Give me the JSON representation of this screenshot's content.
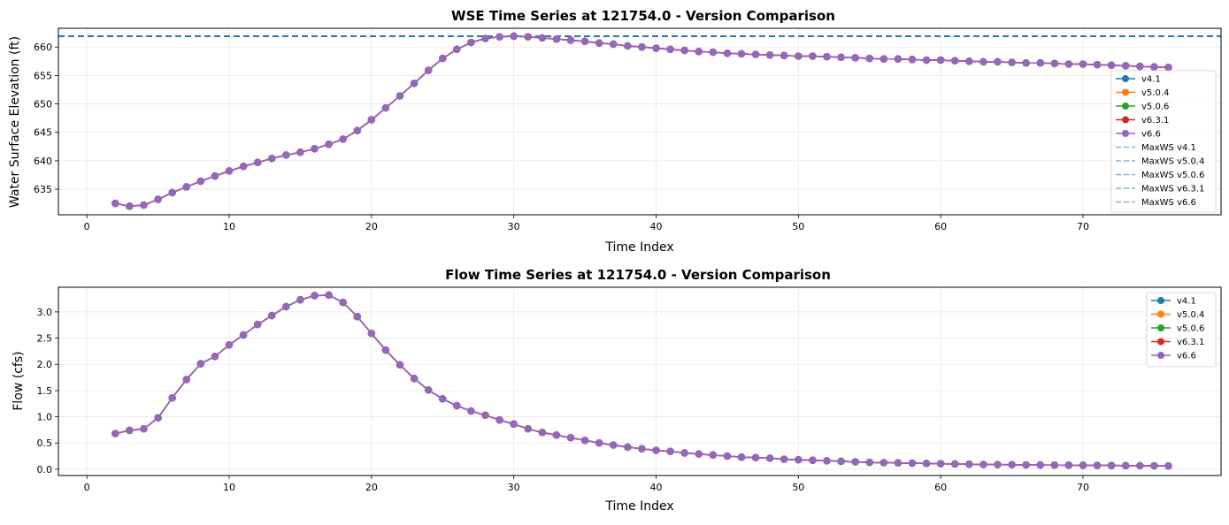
{
  "chart_data": [
    {
      "type": "line",
      "title": "WSE Time Series at 121754.0 - Version Comparison",
      "xlabel": "Time Index",
      "ylabel": "Water Surface Elevation (ft)",
      "xlim": [
        -2,
        79.7
      ],
      "ylim": [
        630.5,
        663.3
      ],
      "xticks": [
        0,
        10,
        20,
        30,
        40,
        50,
        60,
        70
      ],
      "yticks": [
        635,
        640,
        645,
        650,
        655,
        660
      ],
      "grid": true,
      "legend_position": "right",
      "x": [
        2,
        3,
        4,
        5,
        6,
        7,
        8,
        9,
        10,
        11,
        12,
        13,
        14,
        15,
        16,
        17,
        18,
        19,
        20,
        21,
        22,
        23,
        24,
        25,
        26,
        27,
        28,
        29,
        30,
        31,
        32,
        33,
        34,
        35,
        36,
        37,
        38,
        39,
        40,
        41,
        42,
        43,
        44,
        45,
        46,
        47,
        48,
        49,
        50,
        51,
        52,
        53,
        54,
        55,
        56,
        57,
        58,
        59,
        60,
        61,
        62,
        63,
        64,
        65,
        66,
        67,
        68,
        69,
        70,
        71,
        72,
        73,
        74,
        75,
        76
      ],
      "series": [
        {
          "name": "v4.1",
          "color": "#1f77b4"
        },
        {
          "name": "v5.0.4",
          "color": "#ff7f0e"
        },
        {
          "name": "v5.0.6",
          "color": "#2ca02c"
        },
        {
          "name": "v6.3.1",
          "color": "#d62728"
        },
        {
          "name": "v6.6",
          "color": "#9467bd"
        }
      ],
      "values": [
        632.5,
        632.0,
        632.2,
        633.2,
        634.4,
        635.4,
        636.4,
        637.3,
        638.2,
        639.0,
        639.7,
        640.4,
        641.0,
        641.5,
        642.1,
        642.9,
        643.8,
        645.3,
        647.2,
        649.3,
        651.4,
        653.6,
        655.9,
        658.0,
        659.6,
        660.8,
        661.5,
        661.8,
        661.9,
        661.8,
        661.6,
        661.4,
        661.2,
        661.0,
        660.7,
        660.5,
        660.2,
        660.0,
        659.8,
        659.6,
        659.4,
        659.2,
        659.1,
        658.9,
        658.8,
        658.7,
        658.6,
        658.5,
        658.4,
        658.4,
        658.3,
        658.2,
        658.1,
        658.0,
        657.9,
        657.9,
        657.8,
        657.7,
        657.7,
        657.6,
        657.5,
        657.4,
        657.4,
        657.3,
        657.2,
        657.2,
        657.1,
        657.0,
        657.0,
        656.9,
        656.8,
        656.7,
        656.6,
        656.5,
        656.4
      ],
      "reference_lines": [
        {
          "name": "MaxWS v4.1",
          "y": 661.9
        },
        {
          "name": "MaxWS v5.0.4",
          "y": 661.9
        },
        {
          "name": "MaxWS v5.0.6",
          "y": 661.9
        },
        {
          "name": "MaxWS v6.3.1",
          "y": 661.9
        },
        {
          "name": "MaxWS v6.6",
          "y": 661.9
        }
      ]
    },
    {
      "type": "line",
      "title": "Flow Time Series at 121754.0 - Version Comparison",
      "xlabel": "Time Index",
      "ylabel": "Flow (cfs)",
      "xlim": [
        -2,
        79.7
      ],
      "ylim": [
        -0.12,
        3.47
      ],
      "xticks": [
        0,
        10,
        20,
        30,
        40,
        50,
        60,
        70
      ],
      "yticks": [
        0.0,
        0.5,
        1.0,
        1.5,
        2.0,
        2.5,
        3.0
      ],
      "ytick_labels": [
        "0.0",
        "0.5",
        "1.0",
        "1.5",
        "2.0",
        "2.5",
        "3.0"
      ],
      "grid": true,
      "legend_position": "top-right",
      "x": [
        2,
        3,
        4,
        5,
        6,
        7,
        8,
        9,
        10,
        11,
        12,
        13,
        14,
        15,
        16,
        17,
        18,
        19,
        20,
        21,
        22,
        23,
        24,
        25,
        26,
        27,
        28,
        29,
        30,
        31,
        32,
        33,
        34,
        35,
        36,
        37,
        38,
        39,
        40,
        41,
        42,
        43,
        44,
        45,
        46,
        47,
        48,
        49,
        50,
        51,
        52,
        53,
        54,
        55,
        56,
        57,
        58,
        59,
        60,
        61,
        62,
        63,
        64,
        65,
        66,
        67,
        68,
        69,
        70,
        71,
        72,
        73,
        74,
        75,
        76
      ],
      "series": [
        {
          "name": "v4.1",
          "color": "#1f77b4"
        },
        {
          "name": "v5.0.4",
          "color": "#ff7f0e"
        },
        {
          "name": "v5.0.6",
          "color": "#2ca02c"
        },
        {
          "name": "v6.3.1",
          "color": "#d62728"
        },
        {
          "name": "v6.6",
          "color": "#9467bd"
        }
      ],
      "values": [
        0.68,
        0.74,
        0.77,
        0.98,
        1.36,
        1.71,
        2.01,
        2.15,
        2.37,
        2.56,
        2.76,
        2.93,
        3.1,
        3.23,
        3.31,
        3.32,
        3.18,
        2.91,
        2.59,
        2.27,
        1.99,
        1.73,
        1.51,
        1.34,
        1.21,
        1.11,
        1.03,
        0.94,
        0.86,
        0.77,
        0.7,
        0.65,
        0.6,
        0.55,
        0.5,
        0.46,
        0.42,
        0.39,
        0.36,
        0.34,
        0.31,
        0.29,
        0.27,
        0.25,
        0.23,
        0.22,
        0.21,
        0.19,
        0.18,
        0.17,
        0.16,
        0.15,
        0.14,
        0.13,
        0.125,
        0.12,
        0.115,
        0.11,
        0.105,
        0.1,
        0.095,
        0.09,
        0.088,
        0.085,
        0.082,
        0.08,
        0.078,
        0.076,
        0.074,
        0.072,
        0.07,
        0.068,
        0.066,
        0.064,
        0.062
      ]
    }
  ]
}
